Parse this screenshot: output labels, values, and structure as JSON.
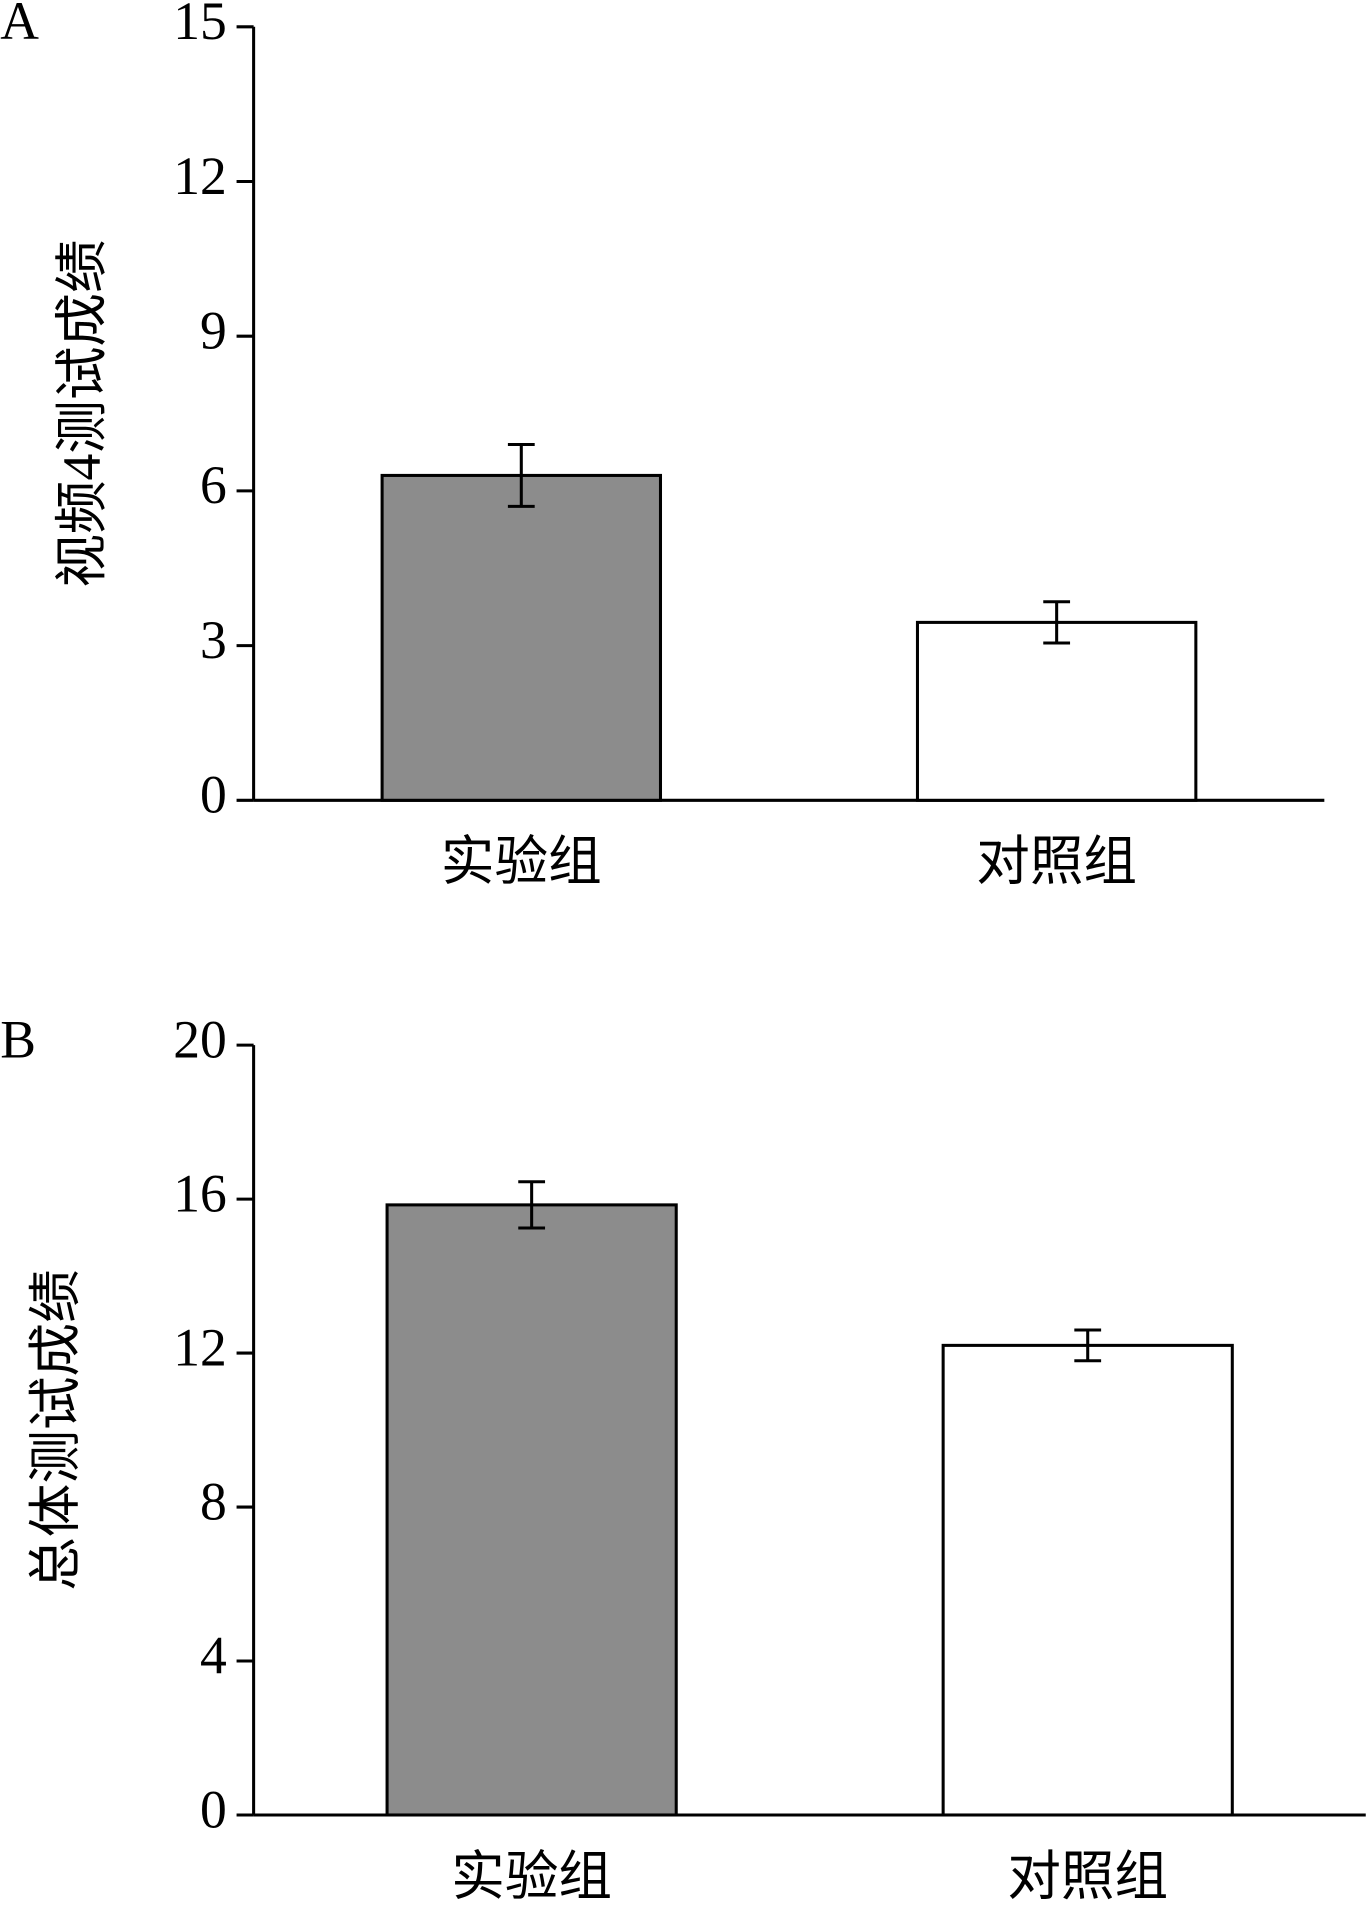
{
  "chart_data": [
    {
      "type": "bar",
      "panel": "A",
      "ylabel": "视频4测试成绩",
      "categories": [
        "实验组",
        "对照组"
      ],
      "values": [
        6.3,
        3.45
      ],
      "errors": [
        0.6,
        0.4
      ],
      "colors": [
        "#8c8c8c",
        "#ffffff"
      ],
      "ylim": [
        0,
        15
      ],
      "yticks": [
        0,
        3,
        6,
        9,
        12,
        15
      ]
    },
    {
      "type": "bar",
      "panel": "B",
      "ylabel": "总体测试成绩",
      "categories": [
        "实验组",
        "对照组"
      ],
      "values": [
        15.85,
        12.2
      ],
      "errors": [
        0.6,
        0.4
      ],
      "colors": [
        "#8c8c8c",
        "#ffffff"
      ],
      "ylim": [
        0,
        20
      ],
      "yticks": [
        0,
        4,
        8,
        12,
        16,
        20
      ]
    }
  ]
}
